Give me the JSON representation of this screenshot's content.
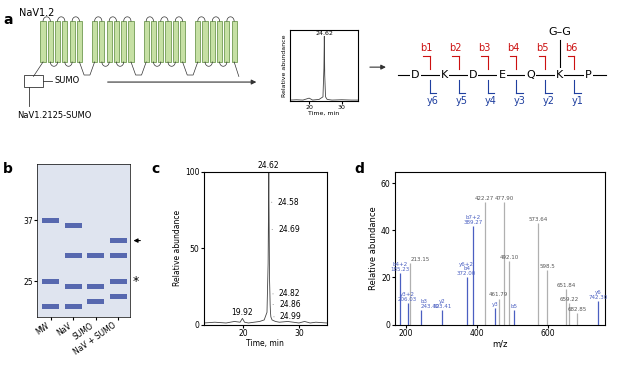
{
  "panel_labels": [
    "a",
    "b",
    "c",
    "d"
  ],
  "diagram": {
    "channel_label": "NaV1.2",
    "tag_label": "SUMO",
    "construct_label": "NaV1.2125-SUMO"
  },
  "peptide": {
    "residues": [
      "D",
      "K",
      "D",
      "E",
      "Q",
      "K",
      "P"
    ],
    "b_ions": [
      "b1",
      "b2",
      "b3",
      "b4",
      "b5",
      "b6"
    ],
    "y_ions": [
      "y6",
      "y5",
      "y4",
      "y3",
      "y2",
      "y1"
    ],
    "modification": {
      "residue": 5,
      "text": "G–G"
    }
  },
  "gel": {
    "lanes": [
      "MW",
      "NaV",
      "SUMO",
      "NaV + SUMO"
    ],
    "ylim": [
      18,
      48
    ],
    "yticks": [
      25,
      37
    ],
    "bands": [
      [
        37,
        25,
        20
      ],
      [
        36,
        30,
        24,
        20
      ],
      [
        30,
        24,
        21
      ],
      [
        33,
        30,
        25,
        22
      ]
    ],
    "arrow_band": 33,
    "asterisk": {
      "text": "*",
      "value": 25
    }
  },
  "chart_data": [
    {
      "type": "line",
      "color": "#444444",
      "x": [
        14,
        16,
        18,
        19.92,
        21,
        23,
        24.2,
        24.5,
        24.62,
        24.75,
        25,
        25.5,
        27,
        30,
        33,
        35
      ],
      "values": [
        1,
        1.5,
        1,
        4,
        1,
        2,
        6,
        50,
        100,
        40,
        6,
        2,
        1,
        1.5,
        1,
        1
      ],
      "xlim": [
        14,
        35
      ],
      "xticks": [
        20,
        30
      ],
      "ylim": [
        0,
        110
      ],
      "yticks": [],
      "tick_labels": "x",
      "xlabel": "Time, min",
      "ylabel": "Relative abundance",
      "annotations": [
        {
          "text": "24.62",
          "x": 24.62,
          "y": 100
        }
      ]
    },
    {
      "type": "line",
      "color": "#444444",
      "x": [
        13,
        15,
        17,
        18.5,
        19.5,
        19.92,
        20.3,
        21,
        22,
        23,
        23.8,
        24.3,
        24.5,
        24.58,
        24.62,
        24.69,
        24.75,
        24.82,
        24.86,
        24.92,
        24.99,
        25.2,
        25.8,
        26.5,
        28,
        30,
        31,
        32,
        33,
        35
      ],
      "values": [
        1,
        1.5,
        1,
        2,
        1.5,
        4,
        1.5,
        1,
        1.5,
        2,
        3,
        8,
        40,
        80,
        100,
        62,
        30,
        20,
        13,
        8,
        5,
        3,
        2,
        1.5,
        2,
        1,
        2,
        1,
        1.5,
        1
      ],
      "xlim": [
        13,
        35
      ],
      "xticks": [
        20,
        30
      ],
      "ylim": [
        0,
        100
      ],
      "yticks": [
        0,
        50,
        100
      ],
      "xlabel": "Time, min",
      "ylabel": "Relative abundance",
      "annotations": [
        {
          "text": "24.62",
          "x": 24.62,
          "y": 100
        },
        {
          "text": "24.58",
          "x": 24.58,
          "y": 80
        },
        {
          "text": "24.69",
          "x": 24.69,
          "y": 62
        },
        {
          "text": "24.82",
          "x": 24.82,
          "y": 20
        },
        {
          "text": "24.86",
          "x": 24.86,
          "y": 13
        },
        {
          "text": "24.99",
          "x": 24.99,
          "y": 5
        },
        {
          "text": "19.92",
          "x": 19.92,
          "y": 4
        }
      ]
    },
    {
      "type": "stem",
      "xlim": [
        170,
        760
      ],
      "xticks": [
        200,
        400,
        600
      ],
      "ylim": [
        0,
        65
      ],
      "yticks": [
        0,
        20,
        40,
        60
      ],
      "xlabel": "m/z",
      "ylabel": "Relative abundance",
      "peaks": [
        {
          "mz": 185.23,
          "intensity": 22,
          "ions": [
            "b4+2"
          ],
          "label": "185.23",
          "color": "#4a5fc1"
        },
        {
          "mz": 206.03,
          "intensity": 9,
          "ions": [
            "y3+2"
          ],
          "label": "206.03",
          "color": "#4a5fc1"
        },
        {
          "mz": 213.15,
          "intensity": 26,
          "label": "213.15",
          "color": "#b0b0b0"
        },
        {
          "mz": 243.42,
          "intensity": 6,
          "ions": [
            "b3"
          ],
          "label": "243.42",
          "color": "#4a5fc1"
        },
        {
          "mz": 303.41,
          "intensity": 6,
          "ions": [
            "y2"
          ],
          "label": "303.41",
          "color": "#4a5fc1"
        },
        {
          "mz": 372.0,
          "intensity": 20,
          "ions": [
            "y6+2",
            "b4"
          ],
          "label": "372.00",
          "color": "#4a5fc1"
        },
        {
          "mz": 389.27,
          "intensity": 42,
          "ions": [
            "b7+2"
          ],
          "label": "389.27",
          "color": "#4a5fc1"
        },
        {
          "mz": 422.27,
          "intensity": 52,
          "label": "422.27",
          "color": "#b0b0b0"
        },
        {
          "mz": 452,
          "intensity": 7,
          "ions": [
            "y3"
          ],
          "color": "#4a5fc1"
        },
        {
          "mz": 461.79,
          "intensity": 11,
          "label": "461.79",
          "color": "#b0b0b0"
        },
        {
          "mz": 477.9,
          "intensity": 52,
          "label": "477.90",
          "color": "#b0b0b0"
        },
        {
          "mz": 492.1,
          "intensity": 27,
          "label": "492.10",
          "color": "#b0b0b0"
        },
        {
          "mz": 505,
          "intensity": 6,
          "ions": [
            "b5"
          ],
          "color": "#4a5fc1"
        },
        {
          "mz": 573.64,
          "intensity": 43,
          "label": "573.64",
          "color": "#b0b0b0"
        },
        {
          "mz": 598.5,
          "intensity": 23,
          "label": "598.5",
          "color": "#b0b0b0"
        },
        {
          "mz": 651.84,
          "intensity": 15,
          "label": "651.84",
          "color": "#b0b0b0"
        },
        {
          "mz": 659.22,
          "intensity": 9,
          "label": "659.22",
          "color": "#b0b0b0"
        },
        {
          "mz": 682.85,
          "intensity": 5,
          "label": "682.85",
          "color": "#b0b0b0"
        },
        {
          "mz": 742.3,
          "intensity": 10,
          "ions": [
            "y6"
          ],
          "label": "742.30",
          "color": "#4a5fc1"
        }
      ]
    }
  ]
}
